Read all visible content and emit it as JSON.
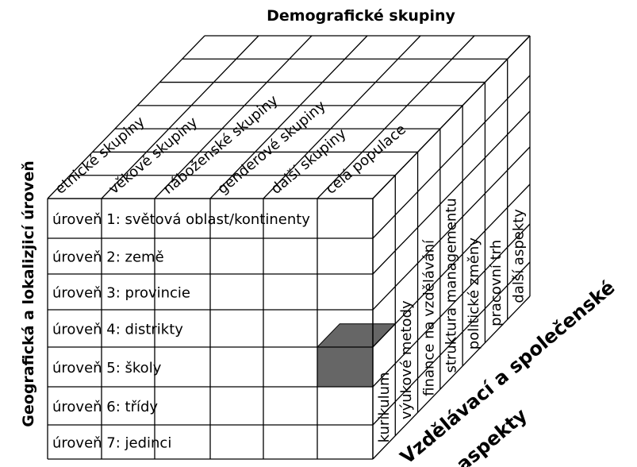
{
  "top_title": "Demografické skupiny",
  "left_title": "Geografická a lokalizjicí úroveň",
  "right_title": [
    "Vzdělávací a společenské",
    "aspekty"
  ],
  "columns": [
    "etnické skupiny",
    "věkové skupiny",
    "náboženské skupiny",
    "genderové skupiny",
    "další skupiny",
    "celá populace"
  ],
  "rows": [
    "úroveň 1: světová oblast/kontinenty",
    "úroveň 2: země",
    "úroveň 3: provincie",
    "úroveň 4: distrikty",
    "úroveň 5: školy",
    "úroveň 6: třídy",
    "úroveň 7: jedinci"
  ],
  "aspects": [
    "kurikulum",
    "výukové metody",
    "finance na vzdělávání",
    "struktura managementu",
    "politické změny",
    "pracovní trh",
    "další aspekty"
  ]
}
